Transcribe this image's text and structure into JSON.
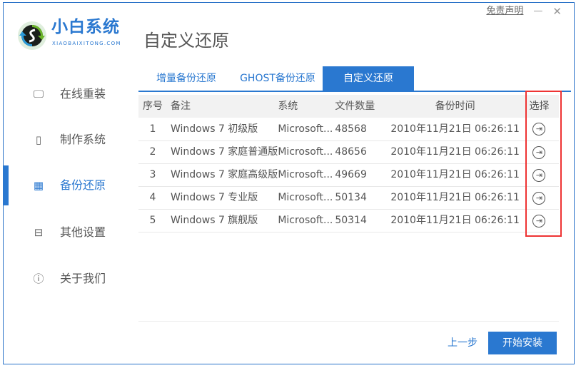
{
  "app": {
    "name": "小白系统",
    "subtitle": "XIAOBAIXITONG.COM",
    "disclaimer": "免责声明",
    "minimize": "—",
    "close": "✕"
  },
  "page_title": "自定义还原",
  "sidebar": {
    "items": [
      {
        "label": "在线重装",
        "icon": "monitor-icon"
      },
      {
        "label": "制作系统",
        "icon": "usb-icon"
      },
      {
        "label": "备份还原",
        "icon": "grid-icon",
        "active": true
      },
      {
        "label": "其他设置",
        "icon": "toolbox-icon"
      },
      {
        "label": "关于我们",
        "icon": "info-icon"
      }
    ]
  },
  "tabs": [
    {
      "label": "增量备份还原"
    },
    {
      "label": "GHOST备份还原"
    },
    {
      "label": "自定义还原",
      "active": true
    }
  ],
  "table": {
    "headers": [
      "序号",
      "备注",
      "系统",
      "文件数量",
      "备份时间",
      "选择"
    ],
    "rows": [
      [
        "1",
        "Windows 7 初级版",
        "Microsoft...",
        "48568",
        "2010年11月21日 06:26:11"
      ],
      [
        "2",
        "Windows 7 家庭普通版",
        "Microsoft...",
        "48656",
        "2010年11月21日 06:26:11"
      ],
      [
        "3",
        "Windows 7 家庭高级版",
        "Microsoft...",
        "49669",
        "2010年11月21日 06:26:11"
      ],
      [
        "4",
        "Windows 7 专业版",
        "Microsoft...",
        "50134",
        "2010年11月21日 06:26:11"
      ],
      [
        "5",
        "Windows 7 旗舰版",
        "Microsoft...",
        "50314",
        "2010年11月21日 06:26:11"
      ]
    ]
  },
  "footer": {
    "back": "上一步",
    "start": "开始安装"
  },
  "colors": {
    "accent": "#2a78d0",
    "highlight": "#ee3333"
  }
}
